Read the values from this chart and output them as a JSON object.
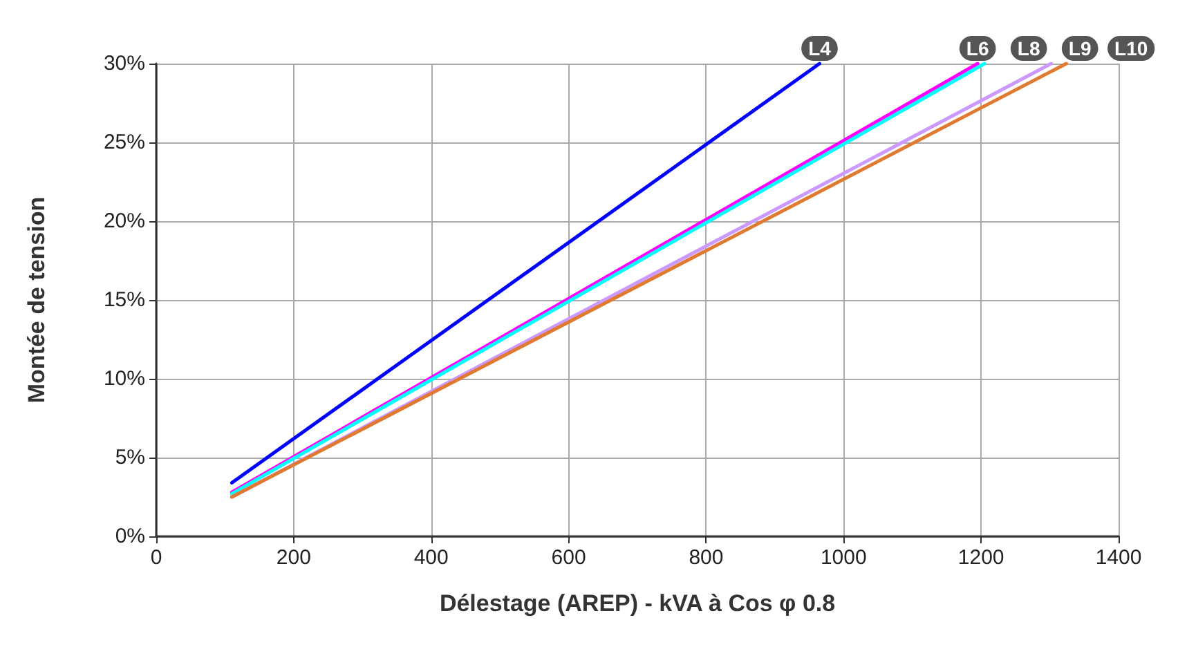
{
  "chart_data": {
    "type": "line",
    "xlabel": "Délestage (AREP) - kVA à Cos φ 0.8",
    "ylabel": "Montée de tension",
    "xlim": [
      0,
      1400
    ],
    "xticks": [
      0,
      200,
      400,
      600,
      800,
      1000,
      1200,
      1400
    ],
    "ylim": [
      0,
      30
    ],
    "yticks": [
      {
        "value": 0,
        "label": "0%"
      },
      {
        "value": 5,
        "label": "5%"
      },
      {
        "value": 10,
        "label": "10%"
      },
      {
        "value": 15,
        "label": "15%"
      },
      {
        "value": 20,
        "label": "20%"
      },
      {
        "value": 25,
        "label": "25%"
      },
      {
        "value": 30,
        "label": "30%"
      }
    ],
    "grid": true,
    "legend": false,
    "marker": "none",
    "line_style": "solid",
    "series": [
      {
        "name": "L4",
        "color": "#0000ff",
        "x": [
          110,
          965
        ],
        "values": [
          3.4,
          30
        ]
      },
      {
        "name": "L6",
        "color": "#ff00ff",
        "x": [
          110,
          1195
        ],
        "values": [
          2.8,
          30
        ]
      },
      {
        "name": "L8",
        "color": "#00ffff",
        "x": [
          110,
          1205
        ],
        "values": [
          2.7,
          30
        ]
      },
      {
        "name": "L9",
        "color": "#cc99ff",
        "x": [
          110,
          1302
        ],
        "values": [
          2.5,
          30
        ]
      },
      {
        "name": "L10",
        "color": "#e07a30",
        "x": [
          110,
          1324
        ],
        "values": [
          2.5,
          30
        ]
      }
    ]
  }
}
